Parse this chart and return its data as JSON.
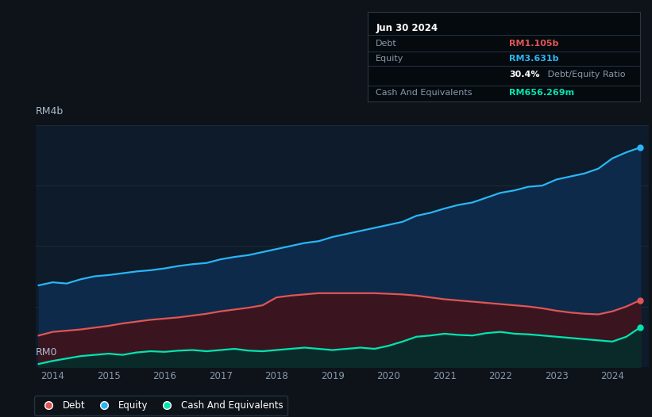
{
  "background_color": "#0e1319",
  "plot_bg_color": "#0d1b2a",
  "ylabel_top": "RM4b",
  "ylabel_bottom": "RM0",
  "x_ticks": [
    2014,
    2015,
    2016,
    2017,
    2018,
    2019,
    2020,
    2021,
    2022,
    2023,
    2024
  ],
  "grid_color": "#1e2e3e",
  "debt_color": "#e05555",
  "equity_color": "#29b6f6",
  "cash_color": "#00e5b0",
  "fill_equity_color": "#0d2a4a",
  "fill_debt_color": "#3a1520",
  "fill_cash_color": "#0a2a2a",
  "info_box_bg": "#050a0f",
  "debt_label": "RM1.105b",
  "equity_label": "RM3.631b",
  "ratio_pct": "30.4%",
  "ratio_text": " Debt/Equity Ratio",
  "cash_label": "RM656.269m",
  "title": "Jun 30 2024",
  "box_label_debt": "Debt",
  "box_label_equity": "Equity",
  "box_label_cash": "Cash And Equivalents",
  "legend_debt": "Debt",
  "legend_equity": "Equity",
  "legend_cash": "Cash And Equivalents",
  "equity_x": [
    2013.75,
    2014.0,
    2014.25,
    2014.5,
    2014.75,
    2015.0,
    2015.25,
    2015.5,
    2015.75,
    2016.0,
    2016.25,
    2016.5,
    2016.75,
    2017.0,
    2017.25,
    2017.5,
    2017.75,
    2018.0,
    2018.25,
    2018.5,
    2018.75,
    2019.0,
    2019.25,
    2019.5,
    2019.75,
    2020.0,
    2020.25,
    2020.5,
    2020.75,
    2021.0,
    2021.25,
    2021.5,
    2021.75,
    2022.0,
    2022.25,
    2022.5,
    2022.75,
    2023.0,
    2023.25,
    2023.5,
    2023.75,
    2024.0,
    2024.25,
    2024.5
  ],
  "equity_y": [
    1.35,
    1.4,
    1.38,
    1.45,
    1.5,
    1.52,
    1.55,
    1.58,
    1.6,
    1.63,
    1.67,
    1.7,
    1.72,
    1.78,
    1.82,
    1.85,
    1.9,
    1.95,
    2.0,
    2.05,
    2.08,
    2.15,
    2.2,
    2.25,
    2.3,
    2.35,
    2.4,
    2.5,
    2.55,
    2.62,
    2.68,
    2.72,
    2.8,
    2.88,
    2.92,
    2.98,
    3.0,
    3.1,
    3.15,
    3.2,
    3.28,
    3.45,
    3.55,
    3.631
  ],
  "debt_x": [
    2013.75,
    2014.0,
    2014.25,
    2014.5,
    2014.75,
    2015.0,
    2015.25,
    2015.5,
    2015.75,
    2016.0,
    2016.25,
    2016.5,
    2016.75,
    2017.0,
    2017.25,
    2017.5,
    2017.75,
    2018.0,
    2018.25,
    2018.5,
    2018.75,
    2019.0,
    2019.25,
    2019.5,
    2019.75,
    2020.0,
    2020.25,
    2020.5,
    2020.75,
    2021.0,
    2021.25,
    2021.5,
    2021.75,
    2022.0,
    2022.25,
    2022.5,
    2022.75,
    2023.0,
    2023.25,
    2023.5,
    2023.75,
    2024.0,
    2024.25,
    2024.5
  ],
  "debt_y": [
    0.52,
    0.58,
    0.6,
    0.62,
    0.65,
    0.68,
    0.72,
    0.75,
    0.78,
    0.8,
    0.82,
    0.85,
    0.88,
    0.92,
    0.95,
    0.98,
    1.02,
    1.15,
    1.18,
    1.2,
    1.22,
    1.22,
    1.22,
    1.22,
    1.22,
    1.21,
    1.2,
    1.18,
    1.15,
    1.12,
    1.1,
    1.08,
    1.06,
    1.04,
    1.02,
    1.0,
    0.97,
    0.93,
    0.9,
    0.88,
    0.87,
    0.92,
    1.0,
    1.105
  ],
  "cash_x": [
    2013.75,
    2014.0,
    2014.25,
    2014.5,
    2014.75,
    2015.0,
    2015.25,
    2015.5,
    2015.75,
    2016.0,
    2016.25,
    2016.5,
    2016.75,
    2017.0,
    2017.25,
    2017.5,
    2017.75,
    2018.0,
    2018.25,
    2018.5,
    2018.75,
    2019.0,
    2019.25,
    2019.5,
    2019.75,
    2020.0,
    2020.25,
    2020.5,
    2020.75,
    2021.0,
    2021.25,
    2021.5,
    2021.75,
    2022.0,
    2022.25,
    2022.5,
    2022.75,
    2023.0,
    2023.25,
    2023.5,
    2023.75,
    2024.0,
    2024.25,
    2024.5
  ],
  "cash_y": [
    0.05,
    0.1,
    0.14,
    0.18,
    0.2,
    0.22,
    0.2,
    0.24,
    0.26,
    0.25,
    0.27,
    0.28,
    0.26,
    0.28,
    0.3,
    0.27,
    0.26,
    0.28,
    0.3,
    0.32,
    0.3,
    0.28,
    0.3,
    0.32,
    0.3,
    0.35,
    0.42,
    0.5,
    0.52,
    0.55,
    0.53,
    0.52,
    0.56,
    0.58,
    0.55,
    0.54,
    0.52,
    0.5,
    0.48,
    0.46,
    0.44,
    0.42,
    0.5,
    0.656
  ],
  "ylim": [
    0,
    4.0
  ],
  "xlim": [
    2013.7,
    2024.65
  ]
}
